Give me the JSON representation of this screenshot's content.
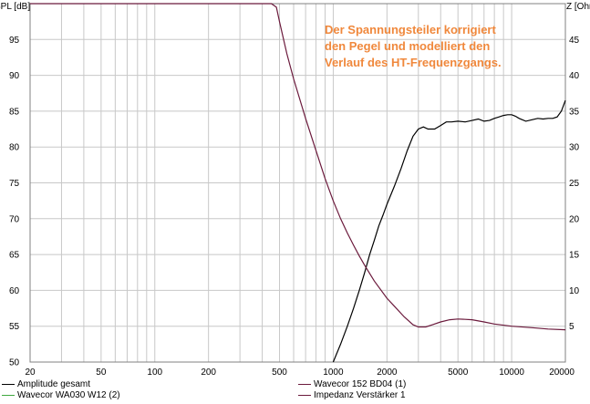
{
  "chart_data": {
    "type": "line",
    "x_scale": "log",
    "xlim": [
      20,
      20000
    ],
    "x_ticks": [
      20,
      50,
      100,
      200,
      500,
      1000,
      2000,
      5000,
      10000,
      20000
    ],
    "y_left": {
      "label": "SPL [dB]",
      "lim": [
        50,
        100
      ],
      "ticks": [
        50,
        55,
        60,
        65,
        70,
        75,
        80,
        85,
        90,
        95
      ]
    },
    "y_right": {
      "label": "Z [Ohm]",
      "lim": [
        0,
        50
      ],
      "ticks": [
        5,
        10,
        15,
        20,
        25,
        30,
        35,
        40,
        45
      ]
    },
    "grid": true,
    "annotation": [
      "Der Spannungsteiler korrigiert",
      "den Pegel und modelliert den",
      "Verlauf des HT-Frequenzgangs."
    ],
    "series": [
      {
        "name": "Amplitude gesamt",
        "axis": "right",
        "color": "#000000",
        "x": [
          1000,
          1100,
          1200,
          1300,
          1400,
          1500,
          1600,
          1700,
          1800,
          1900,
          2000,
          2200,
          2400,
          2600,
          2800,
          3000,
          3200,
          3400,
          3700,
          4000,
          4300,
          4600,
          5000,
          5500,
          6000,
          6500,
          7000,
          7500,
          8000,
          8500,
          9000,
          9500,
          10000,
          10500,
          11000,
          12000,
          13000,
          14000,
          15000,
          16000,
          17000,
          18000,
          19000,
          20000
        ],
        "values": [
          0,
          2.5,
          5,
          7.5,
          10,
          12.5,
          15,
          17,
          19,
          20.5,
          22,
          24.5,
          27,
          29.5,
          31.5,
          32.5,
          32.8,
          32.5,
          32.5,
          33,
          33.5,
          33.5,
          33.6,
          33.5,
          33.7,
          33.9,
          33.6,
          33.7,
          34,
          34.2,
          34.4,
          34.5,
          34.5,
          34.3,
          34,
          33.6,
          33.8,
          34,
          33.9,
          34,
          34,
          34.2,
          35,
          36.5
        ]
      },
      {
        "name": "Wavecor 152 BD04 (1)",
        "axis": "left",
        "color": "#6b1a3c",
        "x": [
          20,
          100,
          200,
          300,
          400,
          450,
          480,
          500,
          550,
          600,
          700,
          800,
          900,
          1000,
          1100,
          1200,
          1300,
          1400,
          1500,
          1700,
          2000,
          2200,
          2500,
          2800,
          3000,
          3300,
          3600,
          4000,
          4500,
          5000,
          5500,
          6000,
          7000,
          8000,
          10000,
          13000,
          16000,
          20000
        ],
        "values": [
          100,
          100,
          100,
          100,
          100,
          100,
          99.5,
          97.5,
          93,
          89.5,
          84,
          79.5,
          75.6,
          72.5,
          70,
          68,
          66.3,
          64.8,
          63.5,
          61.3,
          58.9,
          57.8,
          56.3,
          55.2,
          54.9,
          54.9,
          55.2,
          55.6,
          55.9,
          56,
          55.95,
          55.9,
          55.6,
          55.3,
          55,
          54.8,
          54.6,
          54.5
        ]
      },
      {
        "name": "Wavecor WA030 W12 (2)",
        "axis": "left",
        "color": "#3fa93f",
        "x": [],
        "values": []
      },
      {
        "name": "Impedanz Verstärker 1",
        "axis": "right",
        "color": "#6b1a3c",
        "x": [],
        "values": []
      }
    ]
  }
}
